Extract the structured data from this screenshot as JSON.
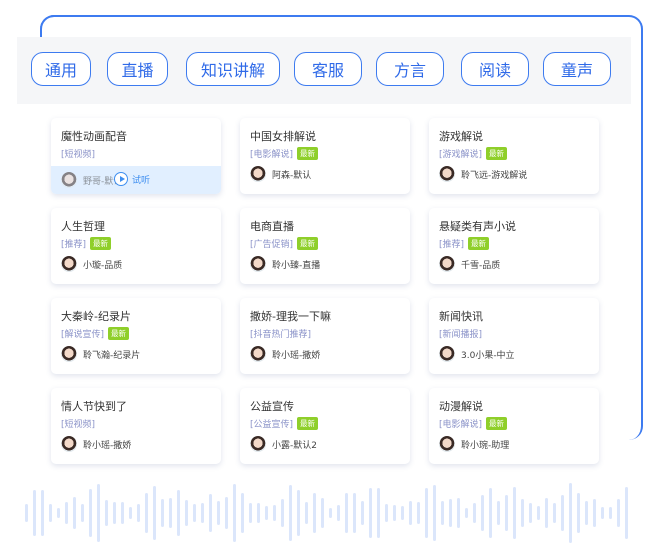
{
  "tabs": [
    "通用",
    "直播",
    "知识讲解",
    "客服",
    "方言",
    "阅读",
    "童声"
  ],
  "new_label": "最新",
  "preview_label": "试听",
  "cards": [
    {
      "title": "魔性动画配音",
      "tag": "[短视频]",
      "new": false,
      "voice": "野哥-默认",
      "hovered": true
    },
    {
      "title": "中国女排解说",
      "tag": "[电影解说]",
      "new": true,
      "voice": "阿森-默认"
    },
    {
      "title": "游戏解说",
      "tag": "[游戏解说]",
      "new": true,
      "voice": "聆飞远-游戏解说"
    },
    {
      "title": "人生哲理",
      "tag": "[推荐]",
      "new": true,
      "voice": "小璇-品质"
    },
    {
      "title": "电商直播",
      "tag": "[广告促销]",
      "new": true,
      "voice": "聆小臻-直播"
    },
    {
      "title": "悬疑类有声小说",
      "tag": "[推荐]",
      "new": true,
      "voice": "千雪-品质"
    },
    {
      "title": "大秦岭-纪录片",
      "tag": "[解说宣传]",
      "new": true,
      "voice": "聆飞瀚-纪录片"
    },
    {
      "title": "撒娇-理我一下嘛",
      "tag": "[抖音热门推荐]",
      "new": false,
      "voice": "聆小瑶-撒娇"
    },
    {
      "title": "新闻快讯",
      "tag": "[新闻播报]",
      "new": false,
      "voice": "3.0小果-中立"
    },
    {
      "title": "情人节快到了",
      "tag": "[短视频]",
      "new": false,
      "voice": "聆小瑶-撒娇"
    },
    {
      "title": "公益宣传",
      "tag": "[公益宣传]",
      "new": true,
      "voice": "小露-默认2"
    },
    {
      "title": "动漫解说",
      "tag": "[电影解说]",
      "new": true,
      "voice": "聆小琬-助理"
    }
  ],
  "colors": {
    "accent": "#3d7bf0",
    "new_badge": "#8fcf2a",
    "tag": "#8a92c8",
    "hover_bg": "#e1efff"
  }
}
